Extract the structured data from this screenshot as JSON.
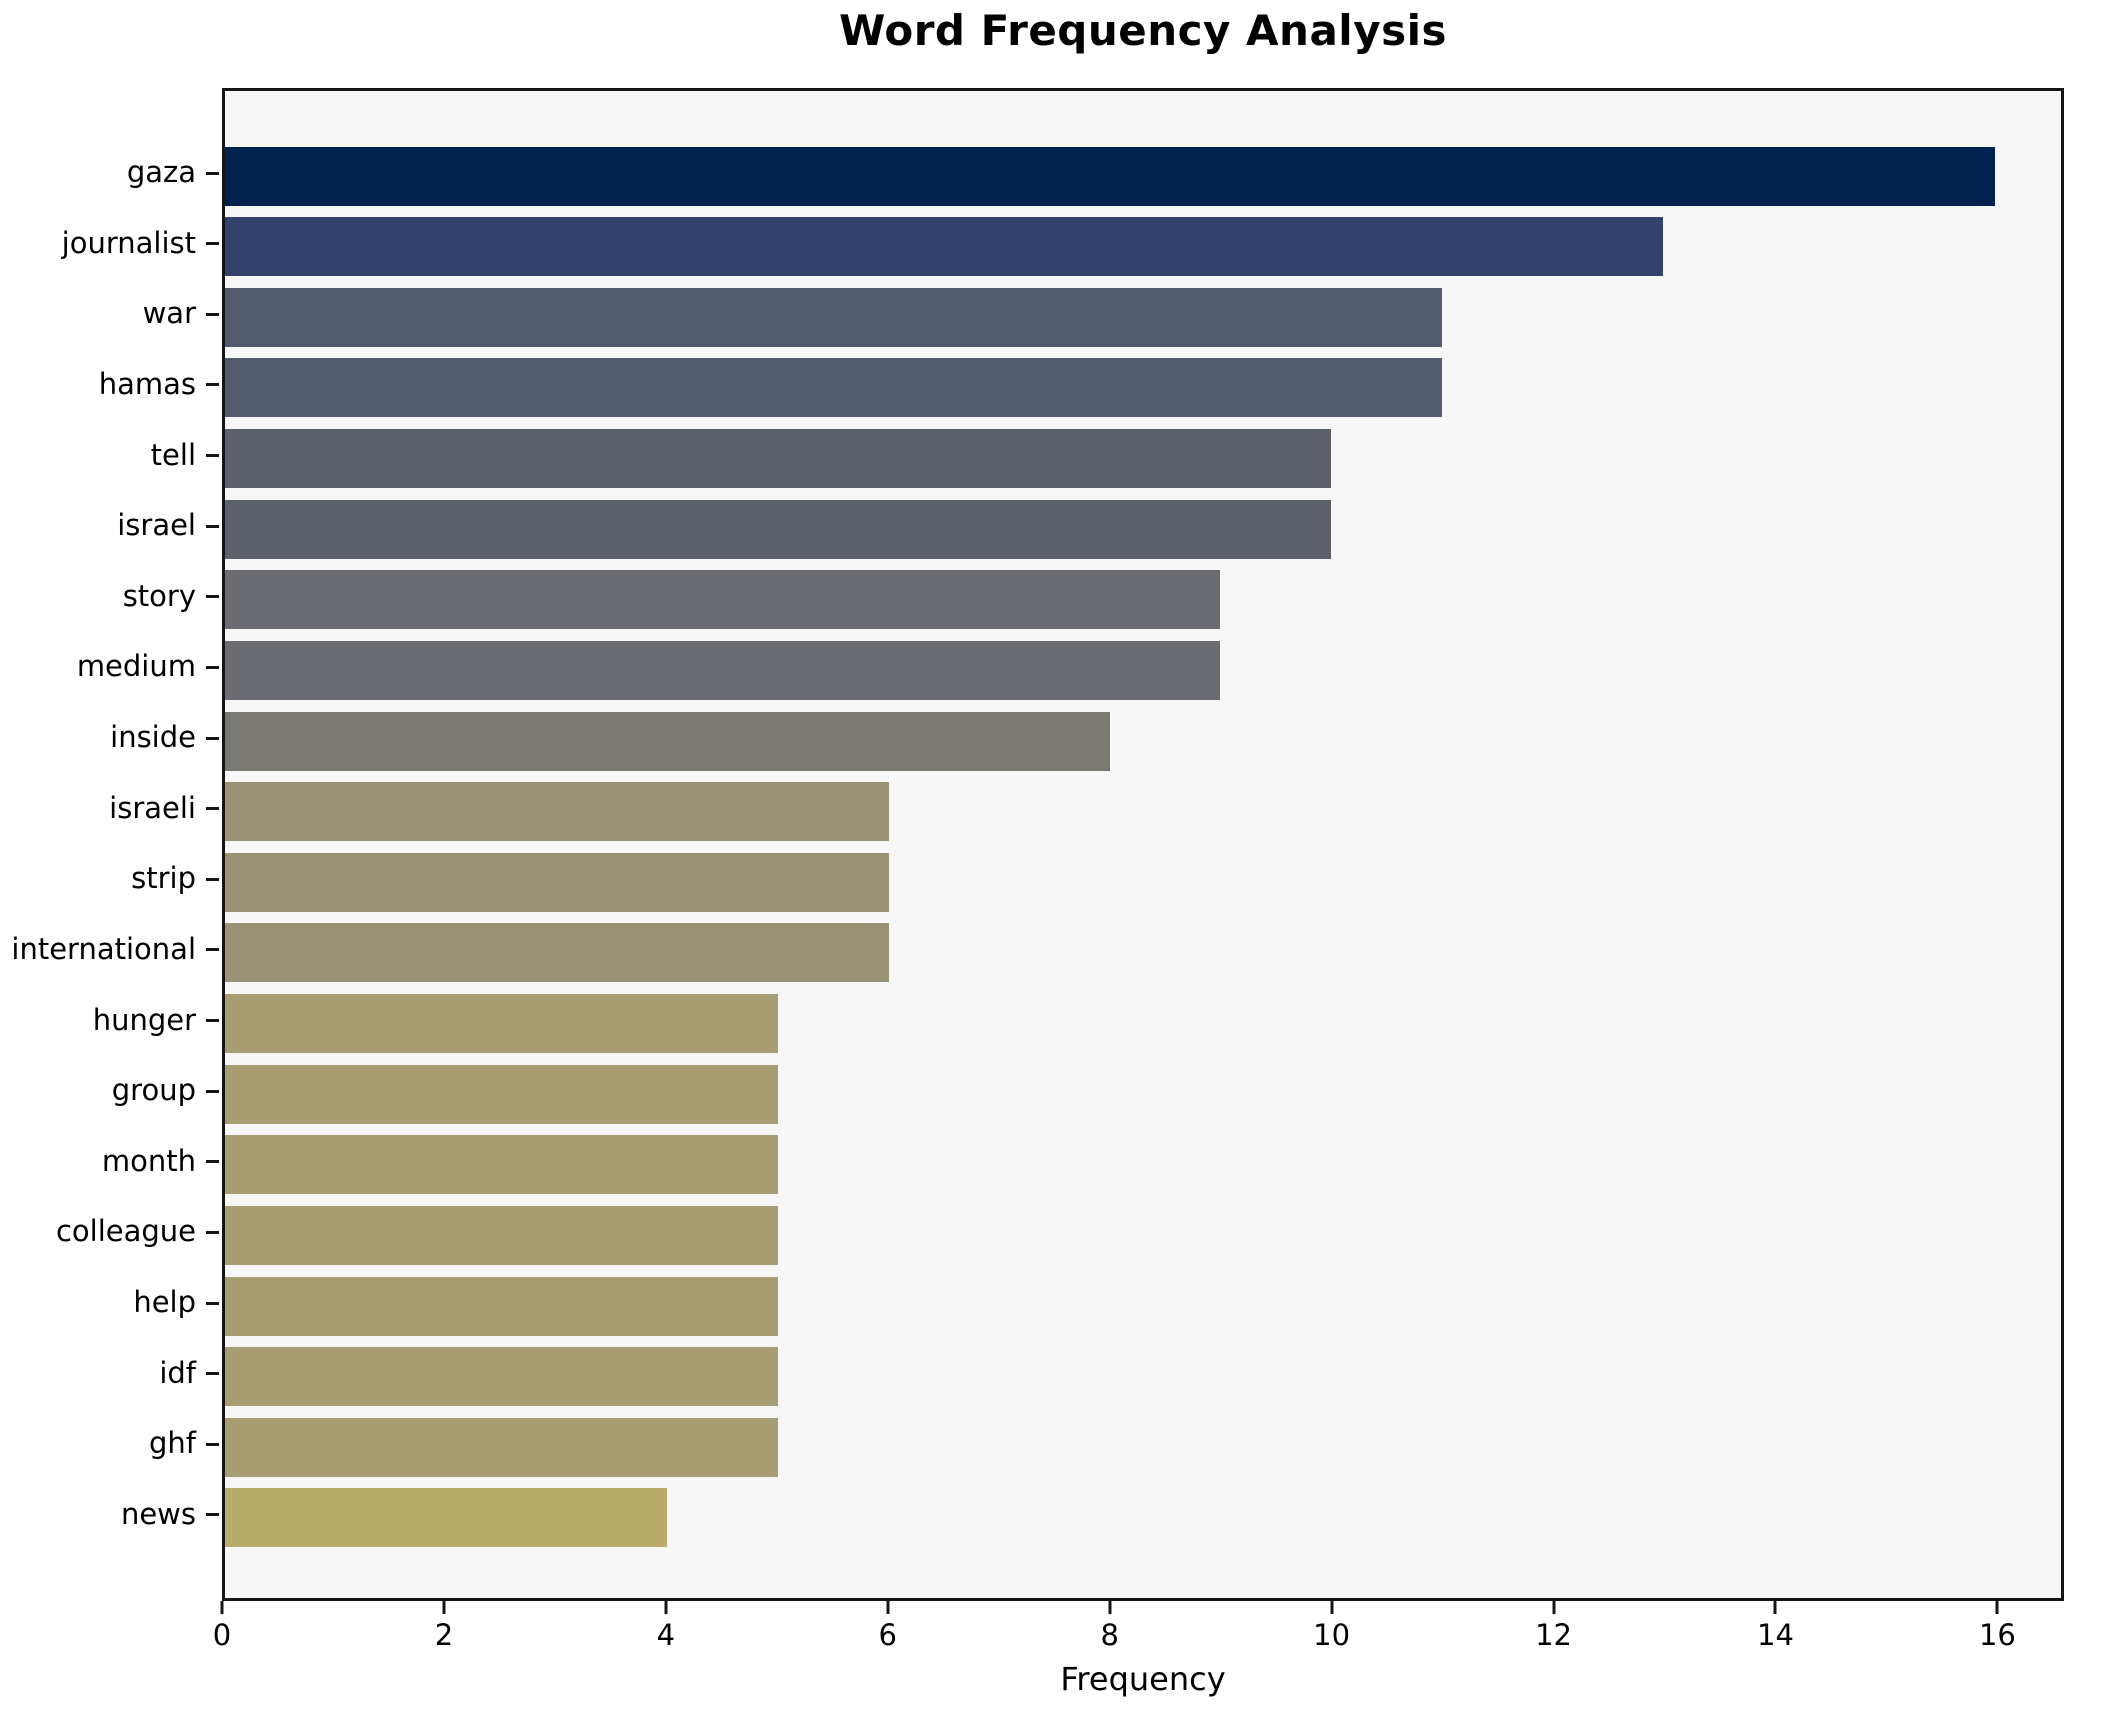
{
  "header": {
    "title": "Word Frequency Analysis"
  },
  "axes": {
    "xlabel": "Frequency",
    "x_tick_labels": [
      "0",
      "2",
      "4",
      "6",
      "8",
      "10",
      "12",
      "14",
      "16"
    ]
  },
  "colors": {
    "figure_bg": "#ffffff",
    "plot_bg": "#f7f7f8",
    "spine": "#151515",
    "text": "#000000"
  },
  "chart_data": {
    "type": "bar",
    "orientation": "horizontal",
    "title": "Word Frequency Analysis",
    "xlabel": "Frequency",
    "ylabel": "",
    "xlim": [
      0,
      16.6
    ],
    "x_ticks": [
      0,
      2,
      4,
      6,
      8,
      10,
      12,
      14,
      16
    ],
    "grid": false,
    "legend": false,
    "categories": [
      "gaza",
      "journalist",
      "war",
      "hamas",
      "tell",
      "israel",
      "story",
      "medium",
      "inside",
      "israeli",
      "strip",
      "international",
      "hunger",
      "group",
      "month",
      "colleague",
      "help",
      "idf",
      "ghf",
      "news"
    ],
    "values": [
      16,
      13,
      11,
      11,
      10,
      10,
      9,
      9,
      8,
      6,
      6,
      6,
      5,
      5,
      5,
      5,
      5,
      5,
      5,
      4
    ],
    "bar_colors": [
      "#00224e",
      "#33436b",
      "#535a6e",
      "#535a6e",
      "#5c616c",
      "#5c616c",
      "#6b6c71",
      "#6b6c71",
      "#7a7872",
      "#999274",
      "#999274",
      "#999274",
      "#a79d72",
      "#a79d72",
      "#a79d72",
      "#a79d72",
      "#a79d72",
      "#a79d72",
      "#a79d72",
      "#b9ab69"
    ]
  }
}
